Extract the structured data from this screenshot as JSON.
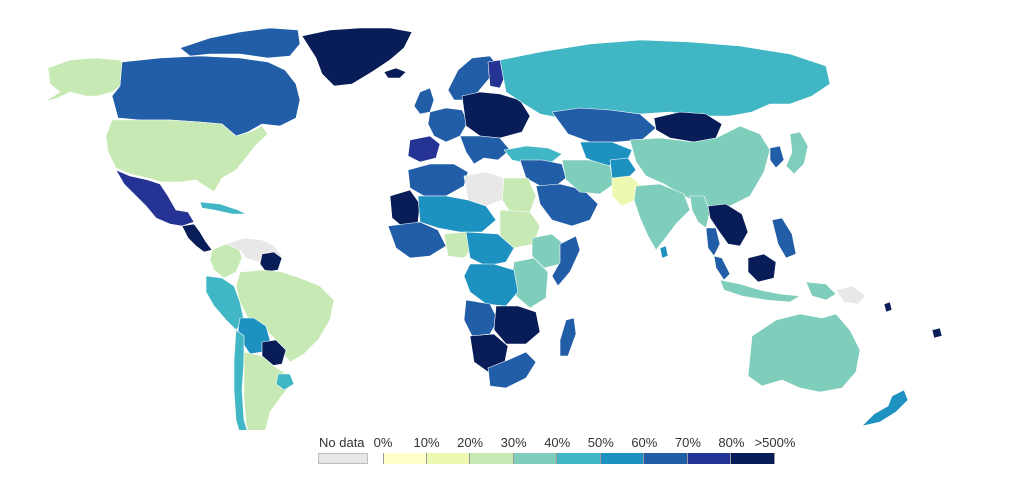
{
  "legend": {
    "no_data_label": "No data",
    "no_data_color": "#e8e8e8",
    "bins": [
      {
        "label": "0%",
        "color": "#ffffcc"
      },
      {
        "label": "10%",
        "color": "#edf8b1"
      },
      {
        "label": "20%",
        "color": "#c7e9b4"
      },
      {
        "label": "30%",
        "color": "#7fcdbb"
      },
      {
        "label": "40%",
        "color": "#41b6c4"
      },
      {
        "label": "50%",
        "color": "#1d91c0"
      },
      {
        "label": "60%",
        "color": "#225ea8"
      },
      {
        "label": "70%",
        "color": "#253494"
      },
      {
        "label": "80%",
        "color": "#081d58"
      }
    ],
    "end_label": ">500%"
  },
  "regions": [
    {
      "name": "alaska",
      "color": "#c7e9b4"
    },
    {
      "name": "canada",
      "color": "#225ea8"
    },
    {
      "name": "canadian-arctic",
      "color": "#225ea8"
    },
    {
      "name": "greenland",
      "color": "#081d58"
    },
    {
      "name": "iceland",
      "color": "#081d58"
    },
    {
      "name": "united-states",
      "color": "#c7e9b4"
    },
    {
      "name": "mexico",
      "color": "#253494"
    },
    {
      "name": "central-america",
      "color": "#081d58"
    },
    {
      "name": "caribbean",
      "color": "#41b6c4"
    },
    {
      "name": "colombia",
      "color": "#c7e9b4"
    },
    {
      "name": "venezuela-guianas",
      "color": "#e8e8e8"
    },
    {
      "name": "suriname",
      "color": "#081d58"
    },
    {
      "name": "ecuador-peru",
      "color": "#41b6c4"
    },
    {
      "name": "brazil",
      "color": "#c7e9b4"
    },
    {
      "name": "bolivia",
      "color": "#1d91c0"
    },
    {
      "name": "paraguay",
      "color": "#081d58"
    },
    {
      "name": "chile",
      "color": "#41b6c4"
    },
    {
      "name": "argentina",
      "color": "#c7e9b4"
    },
    {
      "name": "uruguay",
      "color": "#41b6c4"
    },
    {
      "name": "uk-ireland",
      "color": "#225ea8"
    },
    {
      "name": "scandinavia",
      "color": "#225ea8"
    },
    {
      "name": "finland",
      "color": "#253494"
    },
    {
      "name": "western-europe",
      "color": "#225ea8"
    },
    {
      "name": "central-europe",
      "color": "#081d58"
    },
    {
      "name": "iberia",
      "color": "#253494"
    },
    {
      "name": "italy-balkans",
      "color": "#225ea8"
    },
    {
      "name": "russia",
      "color": "#41b6c4"
    },
    {
      "name": "turkey",
      "color": "#41b6c4"
    },
    {
      "name": "kazakhstan",
      "color": "#225ea8"
    },
    {
      "name": "central-asia",
      "color": "#1d91c0"
    },
    {
      "name": "mongolia",
      "color": "#081d58"
    },
    {
      "name": "china",
      "color": "#7fcdbb"
    },
    {
      "name": "korea",
      "color": "#225ea8"
    },
    {
      "name": "japan",
      "color": "#7fcdbb"
    },
    {
      "name": "middle-east",
      "color": "#225ea8"
    },
    {
      "name": "saudi-arabia",
      "color": "#225ea8"
    },
    {
      "name": "iran",
      "color": "#7fcdbb"
    },
    {
      "name": "afghanistan",
      "color": "#1d91c0"
    },
    {
      "name": "pakistan",
      "color": "#edf8b1"
    },
    {
      "name": "india",
      "color": "#7fcdbb"
    },
    {
      "name": "sri-lanka",
      "color": "#1d91c0"
    },
    {
      "name": "myanmar",
      "color": "#7fcdbb"
    },
    {
      "name": "indochina",
      "color": "#081d58"
    },
    {
      "name": "thailand",
      "color": "#225ea8"
    },
    {
      "name": "malaysia",
      "color": "#225ea8"
    },
    {
      "name": "borneo",
      "color": "#081d58"
    },
    {
      "name": "philippines",
      "color": "#225ea8"
    },
    {
      "name": "indonesia",
      "color": "#7fcdbb"
    },
    {
      "name": "new-guinea",
      "color": "#7fcdbb"
    },
    {
      "name": "papua",
      "color": "#e8e8e8"
    },
    {
      "name": "australia",
      "color": "#7fcdbb"
    },
    {
      "name": "new-zealand",
      "color": "#1d91c0"
    },
    {
      "name": "north-africa-west",
      "color": "#225ea8"
    },
    {
      "name": "western-sahara",
      "color": "#081d58"
    },
    {
      "name": "libya",
      "color": "#e8e8e8"
    },
    {
      "name": "egypt",
      "color": "#c7e9b4"
    },
    {
      "name": "sahel",
      "color": "#1d91c0"
    },
    {
      "name": "sudan",
      "color": "#c7e9b4"
    },
    {
      "name": "ethiopia",
      "color": "#7fcdbb"
    },
    {
      "name": "somalia",
      "color": "#225ea8"
    },
    {
      "name": "west-africa",
      "color": "#225ea8"
    },
    {
      "name": "nigeria",
      "color": "#c7e9b4"
    },
    {
      "name": "central-africa",
      "color": "#1d91c0"
    },
    {
      "name": "east-africa",
      "color": "#7fcdbb"
    },
    {
      "name": "congo-drc",
      "color": "#1d91c0"
    },
    {
      "name": "angola",
      "color": "#225ea8"
    },
    {
      "name": "zambia-zimbabwe",
      "color": "#081d58"
    },
    {
      "name": "namibia-botswana",
      "color": "#081d58"
    },
    {
      "name": "south-africa",
      "color": "#225ea8"
    },
    {
      "name": "madagascar",
      "color": "#225ea8"
    },
    {
      "name": "pacific-islands",
      "color": "#081d58"
    }
  ]
}
